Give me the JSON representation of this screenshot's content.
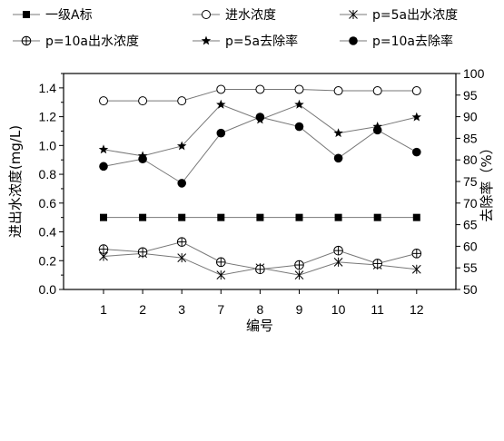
{
  "chart_data": {
    "type": "line",
    "categories": [
      "1",
      "2",
      "3",
      "7",
      "8",
      "9",
      "10",
      "11",
      "12"
    ],
    "xlabel": "编号",
    "ylabel_left": "进出水浓度(mg/L)",
    "ylabel_right": "去除率（%）",
    "ylim_left": [
      0.0,
      1.5
    ],
    "yticks_left": [
      "0.0",
      "0.2",
      "0.4",
      "0.6",
      "0.8",
      "1.0",
      "1.2",
      "1.4"
    ],
    "ylim_right": [
      50,
      100
    ],
    "yticks_right": [
      "50",
      "55",
      "60",
      "65",
      "70",
      "75",
      "80",
      "85",
      "90",
      "95",
      "100"
    ],
    "grid": false,
    "legend_placement": "top",
    "series": [
      {
        "name": "一级A标",
        "axis": "left",
        "marker": "square",
        "line": true,
        "values": [
          0.5,
          0.5,
          0.5,
          0.5,
          0.5,
          0.5,
          0.5,
          0.5,
          0.5
        ]
      },
      {
        "name": "进水浓度",
        "axis": "left",
        "marker": "open-circle",
        "line": true,
        "values": [
          1.31,
          1.31,
          1.31,
          1.39,
          1.39,
          1.39,
          1.38,
          1.38,
          1.38
        ]
      },
      {
        "name": "p=5a出水浓度",
        "axis": "left",
        "marker": "asterisk",
        "line": true,
        "values": [
          0.23,
          0.25,
          0.22,
          0.1,
          0.15,
          0.1,
          0.19,
          0.17,
          0.14
        ]
      },
      {
        "name": "p=10a出水浓度",
        "axis": "left",
        "marker": "crossed-circle",
        "line": true,
        "values": [
          0.28,
          0.26,
          0.33,
          0.19,
          0.14,
          0.17,
          0.27,
          0.18,
          0.25
        ]
      },
      {
        "name": "p=5a去除率",
        "axis": "right",
        "marker": "star",
        "line": true,
        "values": [
          82.4,
          80.9,
          83.2,
          92.8,
          89.3,
          92.8,
          86.2,
          87.7,
          89.9
        ]
      },
      {
        "name": "p=10a去除率",
        "axis": "right",
        "marker": "filled-circle",
        "line": true,
        "values": [
          78.5,
          80.2,
          74.6,
          86.2,
          89.9,
          87.7,
          80.4,
          86.9,
          81.8
        ]
      }
    ]
  }
}
